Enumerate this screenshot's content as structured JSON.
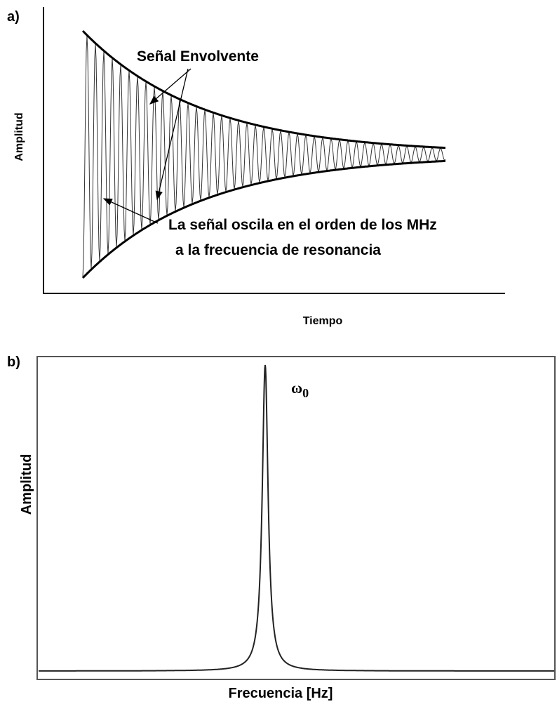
{
  "panels": [
    {
      "label": "a)",
      "y_axis": "Amplitud",
      "x_axis": "Tiempo",
      "annotations": [
        "Señal Envolvente",
        "La señal oscila en el orden de los MHz",
        "a la frecuencia de resonancia"
      ]
    },
    {
      "label": "b)",
      "y_axis": "Amplitud",
      "x_axis": "Frecuencia [Hz]",
      "peak_label": {
        "symbol": "ω",
        "subscript": "0"
      }
    }
  ]
}
